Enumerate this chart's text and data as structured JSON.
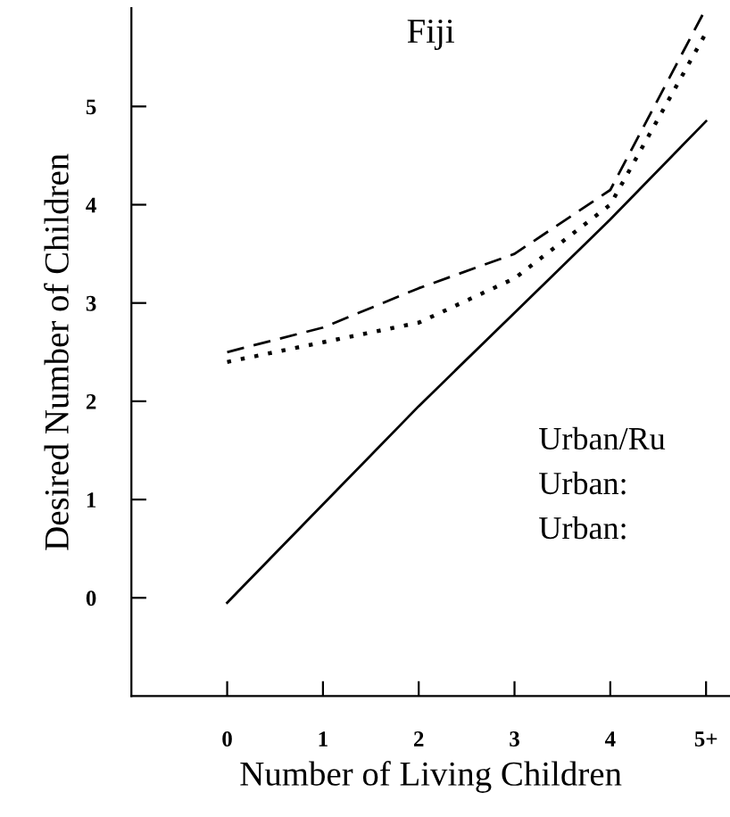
{
  "chart_data": {
    "type": "line",
    "title": "Fiji",
    "xlabel": "Number of Living Children",
    "ylabel": "Desired Number of Children",
    "x": [
      0,
      1,
      2,
      3,
      4,
      5
    ],
    "series": [
      {
        "color": "#000000",
        "line_style": "solid",
        "values": [
          -0.05,
          0.95,
          1.95,
          2.9,
          3.85,
          4.85
        ]
      },
      {
        "color": "#000000",
        "line_style": "dashed",
        "values": [
          2.5,
          2.75,
          3.15,
          3.5,
          4.15,
          6.0
        ]
      },
      {
        "color": "#000000",
        "line_style": "dotted",
        "values": [
          2.4,
          2.6,
          2.8,
          3.25,
          4.0,
          5.75
        ]
      }
    ],
    "xlim": [
      -1,
      5.25
    ],
    "xticks": [
      0,
      1,
      2,
      3,
      4,
      {
        "value": 5,
        "label": "5+"
      }
    ],
    "ylim": [
      -1,
      6
    ],
    "yticks": [
      0,
      1,
      2,
      3,
      4,
      5
    ],
    "grid": false,
    "marker": "none",
    "annotations": [
      "Urban/Ru",
      "Urban:",
      "Urban:"
    ]
  }
}
